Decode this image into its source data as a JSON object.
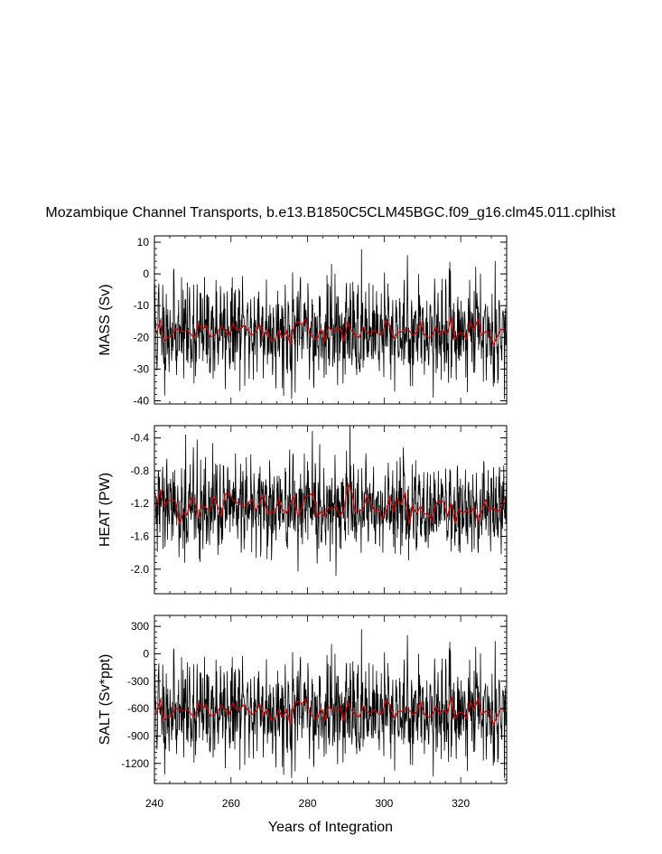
{
  "title": "Mozambique Channel Transports, b.e13.B1850C5CLM45BGC.f09_g16.clm45.011.cplhist",
  "xlabel": "Years of Integration",
  "x_ticks": [
    "240",
    "260",
    "280",
    "300",
    "320"
  ],
  "colors": {
    "raw": "#000000",
    "smoothed": "#d40000",
    "frame": "#000000"
  },
  "chart_data": [
    {
      "type": "line",
      "panel": "mass",
      "ylabel": "MASS (Sv)",
      "xlim": [
        240,
        332
      ],
      "ylim": [
        -41,
        12
      ],
      "y_ticks": [
        "10",
        "0",
        "-10",
        "-20",
        "-30",
        "-40"
      ],
      "y_tick_values": [
        10,
        0,
        -10,
        -20,
        -30,
        -40
      ],
      "series": [
        {
          "style": "monthly",
          "mean": -18,
          "amp": 9,
          "min": -40,
          "max": 12,
          "seed": 11
        },
        {
          "style": "annual-mean",
          "mean": -18,
          "amp": 2.6,
          "min": -22.5,
          "max": -13,
          "seed": 11
        }
      ]
    },
    {
      "type": "line",
      "panel": "heat",
      "ylabel": "HEAT (PW)",
      "xlim": [
        240,
        332
      ],
      "ylim": [
        -2.3,
        -0.25
      ],
      "y_ticks": [
        "-0.4",
        "-0.8",
        "-1.2",
        "-1.6",
        "-2.0"
      ],
      "y_tick_values": [
        -0.4,
        -0.8,
        -1.2,
        -1.6,
        -2.0
      ],
      "series": [
        {
          "style": "monthly",
          "mean": -1.25,
          "amp": 0.33,
          "min": -2.3,
          "max": -0.25,
          "seed": 29
        },
        {
          "style": "annual-mean",
          "mean": -1.25,
          "amp": 0.14,
          "min": -1.6,
          "max": -0.9,
          "seed": 29
        }
      ]
    },
    {
      "type": "line",
      "panel": "salt",
      "ylabel": "SALT (Sv*ppt)",
      "xlim": [
        240,
        332
      ],
      "ylim": [
        -1420,
        420
      ],
      "y_ticks": [
        "300",
        "0",
        "-300",
        "-600",
        "-900",
        "-1200"
      ],
      "y_tick_values": [
        300,
        0,
        -300,
        -600,
        -900,
        -1200
      ],
      "series": [
        {
          "style": "monthly",
          "mean": -620,
          "amp": 310,
          "min": -1400,
          "max": 420,
          "seed": 11
        },
        {
          "style": "annual-mean",
          "mean": -620,
          "amp": 90,
          "min": -780,
          "max": -450,
          "seed": 11
        }
      ]
    }
  ]
}
